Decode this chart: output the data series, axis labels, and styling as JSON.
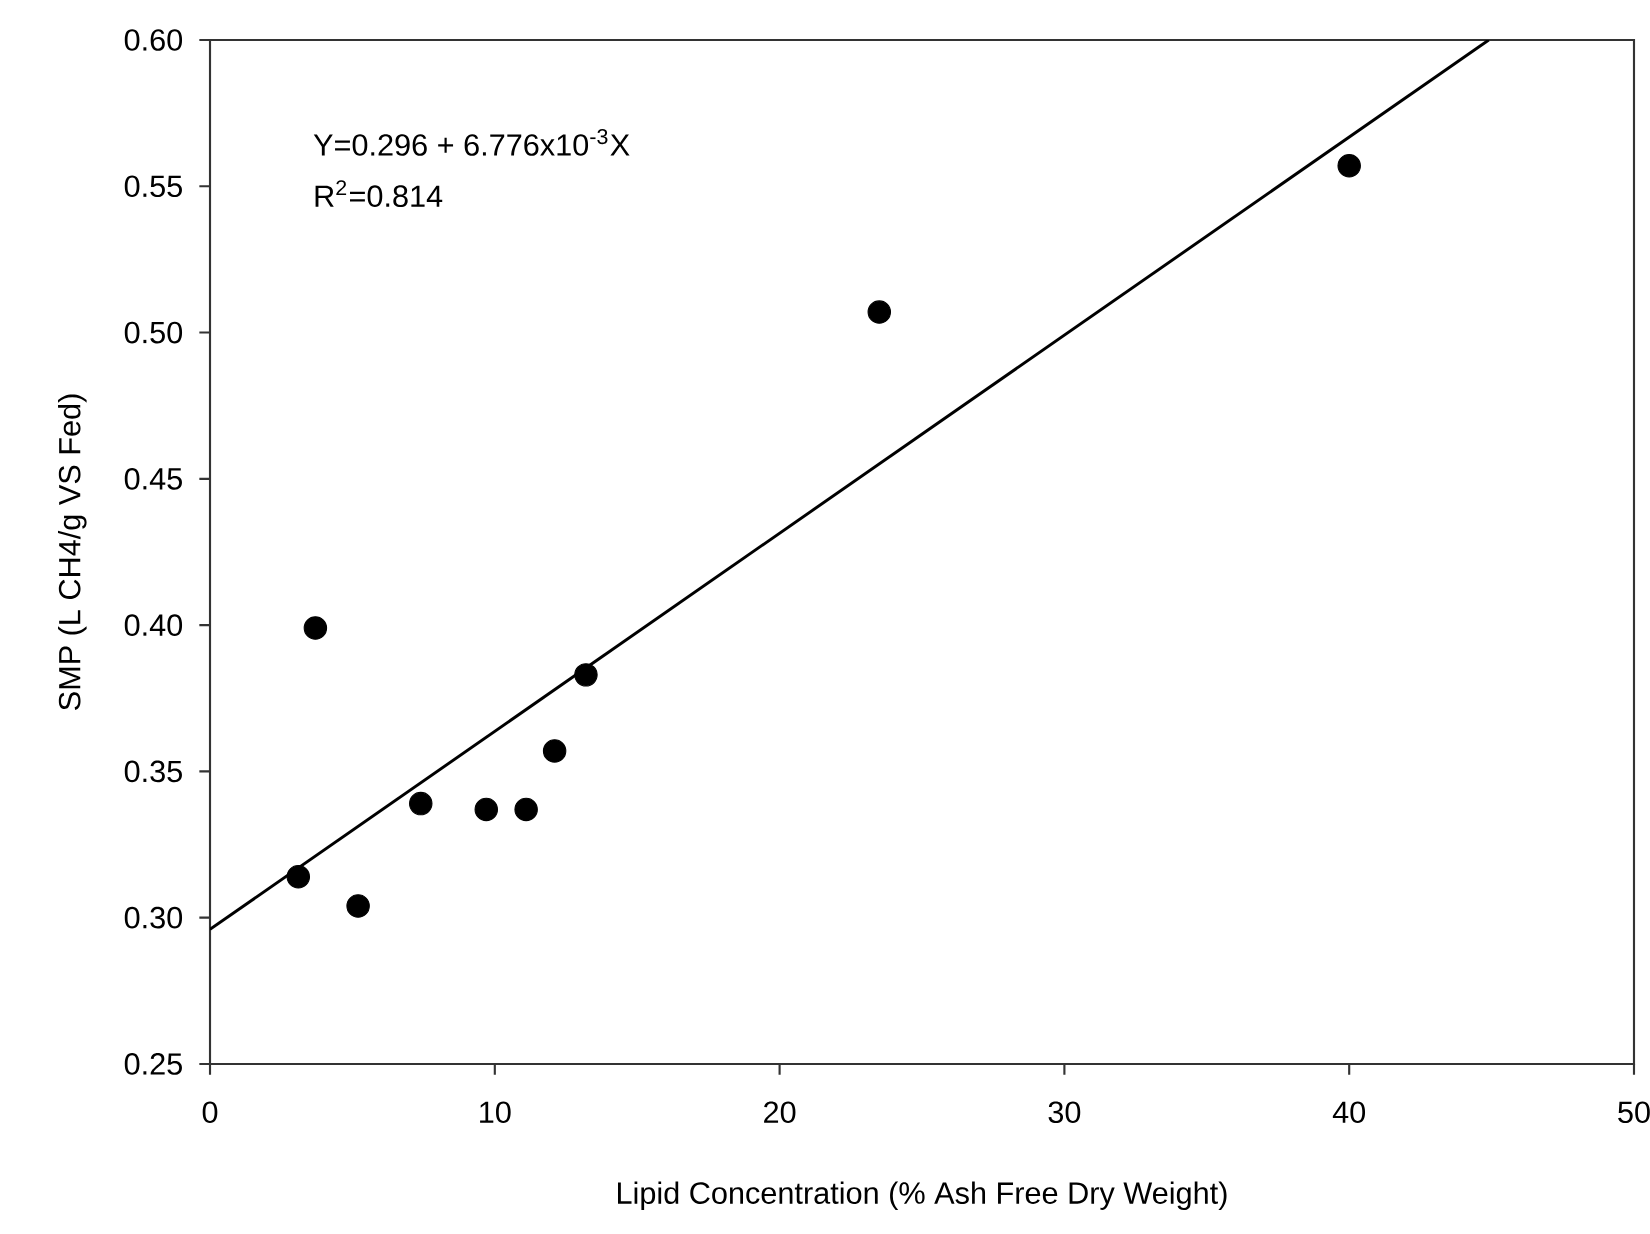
{
  "chart_data": {
    "type": "scatter",
    "xlabel": "Lipid Concentration (% Ash Free Dry Weight)",
    "ylabel": "SMP (L CH4/g VS Fed)",
    "annotations": [
      "Y=0.296 + 6.776x10$^{-3}$X",
      "R$^{2}$=0.814"
    ],
    "xlim": [
      0,
      50
    ],
    "ylim": [
      0.25,
      0.6
    ],
    "xticks": [
      0,
      10,
      20,
      30,
      40,
      50
    ],
    "yticks": [
      {
        "value": 0.25,
        "label": "0.25"
      },
      {
        "value": 0.3,
        "label": "0.30"
      },
      {
        "value": 0.35,
        "label": "0.35"
      },
      {
        "value": 0.4,
        "label": "0.40"
      },
      {
        "value": 0.45,
        "label": "0.45"
      },
      {
        "value": 0.5,
        "label": "0.50"
      },
      {
        "value": 0.55,
        "label": "0.55"
      },
      {
        "value": 0.6,
        "label": "0.60"
      }
    ],
    "grid": false,
    "series": [
      {
        "marker": "circle",
        "color": "#000000",
        "x": [
          3.1,
          3.7,
          5.2,
          7.4,
          9.7,
          11.1,
          12.1,
          13.2,
          23.5,
          40.0
        ],
        "values": [
          0.314,
          0.399,
          0.304,
          0.339,
          0.337,
          0.337,
          0.357,
          0.383,
          0.507,
          0.557
        ]
      },
      {
        "type": "line",
        "color": "#000000",
        "line_style": "solid",
        "x": [
          0,
          44.9
        ],
        "values": [
          0.296,
          0.6
        ]
      }
    ]
  }
}
